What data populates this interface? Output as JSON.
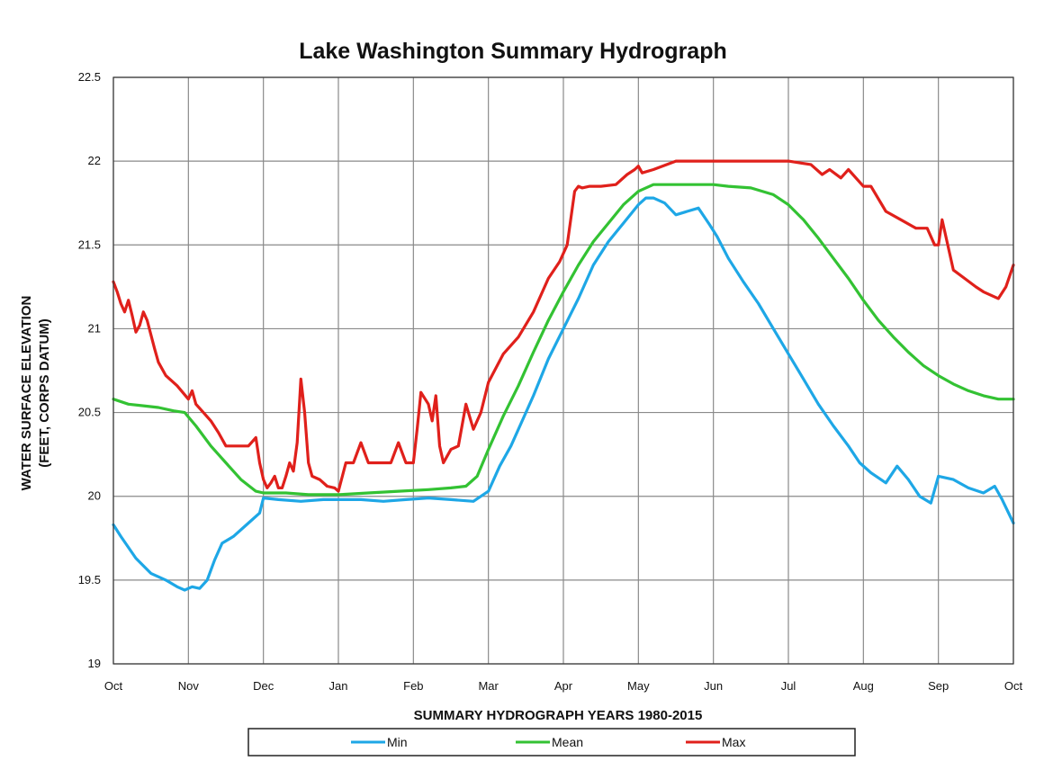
{
  "chart_data": {
    "type": "line",
    "title": "Lake Washington Summary Hydrograph",
    "xlabel": "SUMMARY HYDROGRAPH YEARS 1980-2015",
    "ylabel": [
      "WATER SURFACE ELEVATION",
      "(FEET, CORPS DATUM)"
    ],
    "x_ticks": [
      "Oct",
      "Nov",
      "Dec",
      "Jan",
      "Feb",
      "Mar",
      "Apr",
      "May",
      "Jun",
      "Jul",
      "Aug",
      "Sep",
      "Oct"
    ],
    "y_ticks": [
      "19",
      "19.5",
      "20",
      "20.5",
      "21",
      "21.5",
      "22",
      "22.5"
    ],
    "ylim": [
      19,
      22.5
    ],
    "xlim": [
      0,
      12
    ],
    "grid": true,
    "legend_position": "bottom",
    "colors": {
      "Min": "#1ea7e6",
      "Mean": "#33c233",
      "Max": "#e0201b"
    },
    "series": [
      {
        "name": "Min",
        "x": [
          0,
          0.1,
          0.3,
          0.5,
          0.7,
          0.85,
          0.95,
          1.05,
          1.15,
          1.25,
          1.35,
          1.45,
          1.6,
          1.8,
          1.95,
          2.0,
          2.2,
          2.5,
          2.8,
          3.0,
          3.3,
          3.6,
          3.9,
          4.2,
          4.5,
          4.8,
          5.0,
          5.15,
          5.3,
          5.45,
          5.6,
          5.8,
          6.0,
          6.2,
          6.4,
          6.6,
          6.8,
          7.0,
          7.1,
          7.2,
          7.35,
          7.5,
          7.65,
          7.8,
          7.95,
          8.05,
          8.2,
          8.4,
          8.6,
          8.8,
          9.0,
          9.2,
          9.4,
          9.6,
          9.8,
          9.95,
          10.1,
          10.3,
          10.45,
          10.6,
          10.75,
          10.9,
          11.0,
          11.2,
          11.4,
          11.6,
          11.75,
          11.85,
          12.0
        ],
        "y": [
          19.83,
          19.76,
          19.63,
          19.54,
          19.5,
          19.46,
          19.44,
          19.46,
          19.45,
          19.5,
          19.62,
          19.72,
          19.76,
          19.84,
          19.9,
          19.99,
          19.98,
          19.97,
          19.98,
          19.98,
          19.98,
          19.97,
          19.98,
          19.99,
          19.98,
          19.97,
          20.03,
          20.18,
          20.3,
          20.45,
          20.6,
          20.82,
          21.0,
          21.18,
          21.38,
          21.52,
          21.63,
          21.74,
          21.78,
          21.78,
          21.75,
          21.68,
          21.7,
          21.72,
          21.62,
          21.55,
          21.42,
          21.28,
          21.15,
          21.0,
          20.85,
          20.7,
          20.55,
          20.42,
          20.3,
          20.2,
          20.14,
          20.08,
          20.18,
          20.1,
          20.0,
          19.96,
          20.12,
          20.1,
          20.05,
          20.02,
          20.06,
          19.98,
          19.84
        ]
      },
      {
        "name": "Mean",
        "x": [
          0,
          0.2,
          0.4,
          0.6,
          0.8,
          0.95,
          1.1,
          1.3,
          1.5,
          1.7,
          1.9,
          2.0,
          2.3,
          2.6,
          3.0,
          3.4,
          3.8,
          4.2,
          4.5,
          4.7,
          4.85,
          5.0,
          5.2,
          5.4,
          5.6,
          5.8,
          6.0,
          6.2,
          6.4,
          6.6,
          6.8,
          7.0,
          7.2,
          7.5,
          7.8,
          8.0,
          8.2,
          8.5,
          8.8,
          9.0,
          9.2,
          9.4,
          9.6,
          9.8,
          10.0,
          10.2,
          10.4,
          10.6,
          10.8,
          11.0,
          11.2,
          11.4,
          11.6,
          11.8,
          12.0
        ],
        "y": [
          20.58,
          20.55,
          20.54,
          20.53,
          20.51,
          20.5,
          20.42,
          20.3,
          20.2,
          20.1,
          20.03,
          20.02,
          20.02,
          20.01,
          20.01,
          20.02,
          20.03,
          20.04,
          20.05,
          20.06,
          20.12,
          20.28,
          20.48,
          20.66,
          20.86,
          21.05,
          21.22,
          21.38,
          21.52,
          21.63,
          21.74,
          21.82,
          21.86,
          21.86,
          21.86,
          21.86,
          21.85,
          21.84,
          21.8,
          21.74,
          21.65,
          21.54,
          21.42,
          21.3,
          21.17,
          21.05,
          20.95,
          20.86,
          20.78,
          20.72,
          20.67,
          20.63,
          20.6,
          20.58,
          20.58
        ]
      },
      {
        "name": "Max",
        "x": [
          0,
          0.05,
          0.1,
          0.15,
          0.2,
          0.25,
          0.3,
          0.35,
          0.4,
          0.45,
          0.55,
          0.6,
          0.7,
          0.85,
          1.0,
          1.05,
          1.1,
          1.2,
          1.3,
          1.4,
          1.5,
          1.6,
          1.7,
          1.8,
          1.9,
          1.95,
          2.0,
          2.05,
          2.1,
          2.15,
          2.2,
          2.25,
          2.3,
          2.35,
          2.4,
          2.45,
          2.5,
          2.55,
          2.6,
          2.65,
          2.75,
          2.85,
          2.95,
          3.0,
          3.1,
          3.2,
          3.3,
          3.4,
          3.5,
          3.7,
          3.8,
          3.9,
          4.0,
          4.05,
          4.1,
          4.2,
          4.25,
          4.3,
          4.35,
          4.4,
          4.5,
          4.6,
          4.7,
          4.8,
          4.9,
          5.0,
          5.2,
          5.4,
          5.6,
          5.8,
          5.95,
          6.05,
          6.15,
          6.2,
          6.25,
          6.35,
          6.5,
          6.7,
          6.85,
          6.95,
          7.0,
          7.05,
          7.2,
          7.5,
          7.8,
          8.0,
          8.5,
          9.0,
          9.3,
          9.45,
          9.55,
          9.7,
          9.8,
          10.0,
          10.1,
          10.3,
          10.5,
          10.7,
          10.85,
          10.95,
          11.0,
          11.05,
          11.2,
          11.35,
          11.5,
          11.6,
          11.7,
          11.8,
          11.9,
          12.0
        ],
        "y": [
          21.28,
          21.22,
          21.15,
          21.1,
          21.17,
          21.08,
          20.98,
          21.02,
          21.1,
          21.05,
          20.88,
          20.8,
          20.72,
          20.66,
          20.58,
          20.63,
          20.55,
          20.5,
          20.45,
          20.38,
          20.3,
          20.3,
          20.3,
          20.3,
          20.35,
          20.2,
          20.1,
          20.05,
          20.08,
          20.12,
          20.05,
          20.05,
          20.12,
          20.2,
          20.15,
          20.32,
          20.7,
          20.5,
          20.2,
          20.12,
          20.1,
          20.06,
          20.05,
          20.03,
          20.2,
          20.2,
          20.32,
          20.2,
          20.2,
          20.2,
          20.32,
          20.2,
          20.2,
          20.4,
          20.62,
          20.55,
          20.45,
          20.6,
          20.3,
          20.2,
          20.28,
          20.3,
          20.55,
          20.4,
          20.5,
          20.68,
          20.85,
          20.95,
          21.1,
          21.3,
          21.4,
          21.5,
          21.82,
          21.85,
          21.84,
          21.85,
          21.85,
          21.86,
          21.92,
          21.95,
          21.97,
          21.93,
          21.95,
          22.0,
          22.0,
          22.0,
          22.0,
          22.0,
          21.98,
          21.92,
          21.95,
          21.9,
          21.95,
          21.85,
          21.85,
          21.7,
          21.65,
          21.6,
          21.6,
          21.5,
          21.5,
          21.65,
          21.35,
          21.3,
          21.25,
          21.22,
          21.2,
          21.18,
          21.25,
          21.38
        ]
      }
    ]
  }
}
